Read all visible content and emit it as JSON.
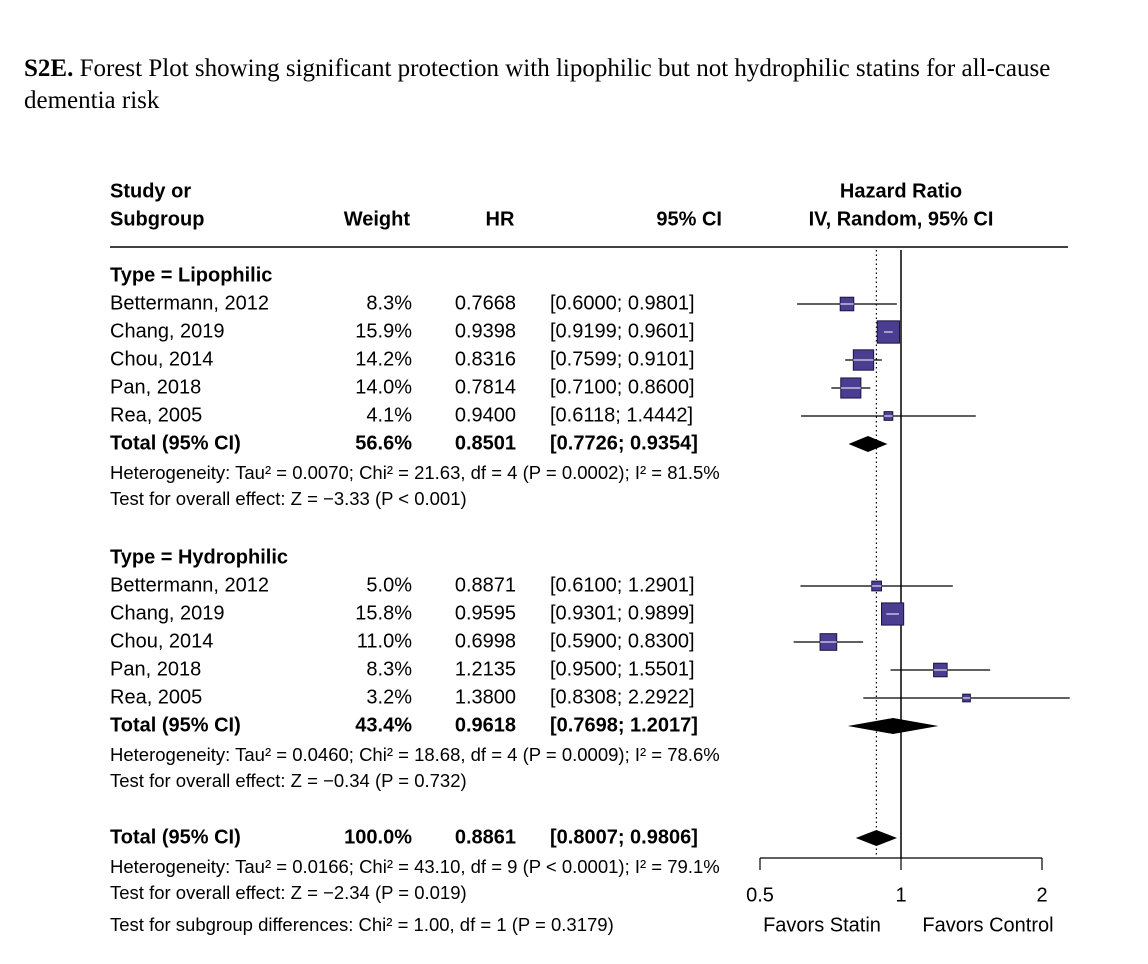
{
  "chart_data": {
    "type": "forest",
    "title_label": "S2E.",
    "title": "Forest Plot showing significant protection with lipophilic but not hydrophilic statins for all-cause dementia risk",
    "columns": {
      "study": [
        "Study or",
        "Subgroup"
      ],
      "weight": "Weight",
      "hr": "HR",
      "ci": "95% CI",
      "plot": [
        "Hazard Ratio",
        "IV, Random, 95% CI"
      ]
    },
    "subgroups": [
      {
        "label": "Type = Lipophilic",
        "studies": [
          {
            "name": "Bettermann, 2012",
            "weight": 8.3,
            "weight_label": "8.3%",
            "hr": 0.7668,
            "ci_low": 0.6,
            "ci_high": 0.9801,
            "ci_label": "[0.6000; 0.9801]"
          },
          {
            "name": "Chang, 2019",
            "weight": 15.9,
            "weight_label": "15.9%",
            "hr": 0.9398,
            "ci_low": 0.9199,
            "ci_high": 0.9601,
            "ci_label": "[0.9199; 0.9601]"
          },
          {
            "name": "Chou, 2014",
            "weight": 14.2,
            "weight_label": "14.2%",
            "hr": 0.8316,
            "ci_low": 0.7599,
            "ci_high": 0.9101,
            "ci_label": "[0.7599; 0.9101]"
          },
          {
            "name": "Pan, 2018",
            "weight": 14.0,
            "weight_label": "14.0%",
            "hr": 0.7814,
            "ci_low": 0.71,
            "ci_high": 0.86,
            "ci_label": "[0.7100; 0.8600]"
          },
          {
            "name": "Rea, 2005",
            "weight": 4.1,
            "weight_label": "4.1%",
            "hr": 0.94,
            "hr_label": "0.9400",
            "ci_low": 0.6118,
            "ci_high": 1.4442,
            "ci_label": "[0.6118; 1.4442]"
          }
        ],
        "total": {
          "name": "Total (95% CI)",
          "weight": 56.6,
          "weight_label": "56.6%",
          "hr": 0.8501,
          "ci_low": 0.7726,
          "ci_high": 0.9354,
          "ci_label": "[0.7726; 0.9354]"
        },
        "heterogeneity": "Heterogeneity: Tau² = 0.0070; Chi² = 21.63, df = 4 (P = 0.0002); I² = 81.5%",
        "overall_effect": "Test for overall effect: Z = −3.33 (P < 0.001)"
      },
      {
        "label": "Type = Hydrophilic",
        "studies": [
          {
            "name": "Bettermann, 2012",
            "weight": 5.0,
            "weight_label": "5.0%",
            "hr": 0.8871,
            "ci_low": 0.61,
            "ci_high": 1.2901,
            "ci_label": "[0.6100; 1.2901]"
          },
          {
            "name": "Chang, 2019",
            "weight": 15.8,
            "weight_label": "15.8%",
            "hr": 0.9595,
            "ci_low": 0.9301,
            "ci_high": 0.9899,
            "ci_label": "[0.9301; 0.9899]"
          },
          {
            "name": "Chou, 2014",
            "weight": 11.0,
            "weight_label": "11.0%",
            "hr": 0.6998,
            "ci_low": 0.59,
            "ci_high": 0.83,
            "ci_label": "[0.5900; 0.8300]"
          },
          {
            "name": "Pan, 2018",
            "weight": 8.3,
            "weight_label": "8.3%",
            "hr": 1.2135,
            "ci_low": 0.95,
            "ci_high": 1.5501,
            "ci_label": "[0.9500; 1.5501]"
          },
          {
            "name": "Rea, 2005",
            "weight": 3.2,
            "weight_label": "3.2%",
            "hr": 1.38,
            "hr_label": "1.3800",
            "ci_low": 0.8308,
            "ci_high": 2.2922,
            "ci_label": "[0.8308; 2.2922]"
          }
        ],
        "total": {
          "name": "Total (95% CI)",
          "weight": 43.4,
          "weight_label": "43.4%",
          "hr": 0.9618,
          "ci_low": 0.7698,
          "ci_high": 1.2017,
          "ci_label": "[0.7698; 1.2017]"
        },
        "heterogeneity": "Heterogeneity: Tau² = 0.0460; Chi² = 18.68, df = 4 (P = 0.0009); I² = 78.6%",
        "overall_effect": "Test for overall effect: Z = −0.34 (P = 0.732)"
      }
    ],
    "overall": {
      "name": "Total (95% CI)",
      "weight": 100.0,
      "weight_label": "100.0%",
      "hr": 0.8861,
      "ci_low": 0.8007,
      "ci_high": 0.9806,
      "ci_label": "[0.8007; 0.9806]",
      "heterogeneity": "Heterogeneity: Tau² = 0.0166; Chi² = 43.10, df = 9 (P < 0.0001); I² = 79.1%",
      "overall_effect": "Test for overall effect: Z = −2.34 (P = 0.019)",
      "subgroup_differences": "Test for subgroup differences: Chi² = 1.00, df = 1 (P = 0.3179)"
    },
    "xscale": "log",
    "xlim": [
      0.5,
      2
    ],
    "xticks": [
      0.5,
      1,
      2
    ],
    "reference_line": 1,
    "x_annotations": {
      "left": "Favors Statin",
      "right": "Favors Control"
    },
    "colors": {
      "box": "#4b3d91",
      "diamond": "#000000",
      "line": "#000000"
    }
  }
}
